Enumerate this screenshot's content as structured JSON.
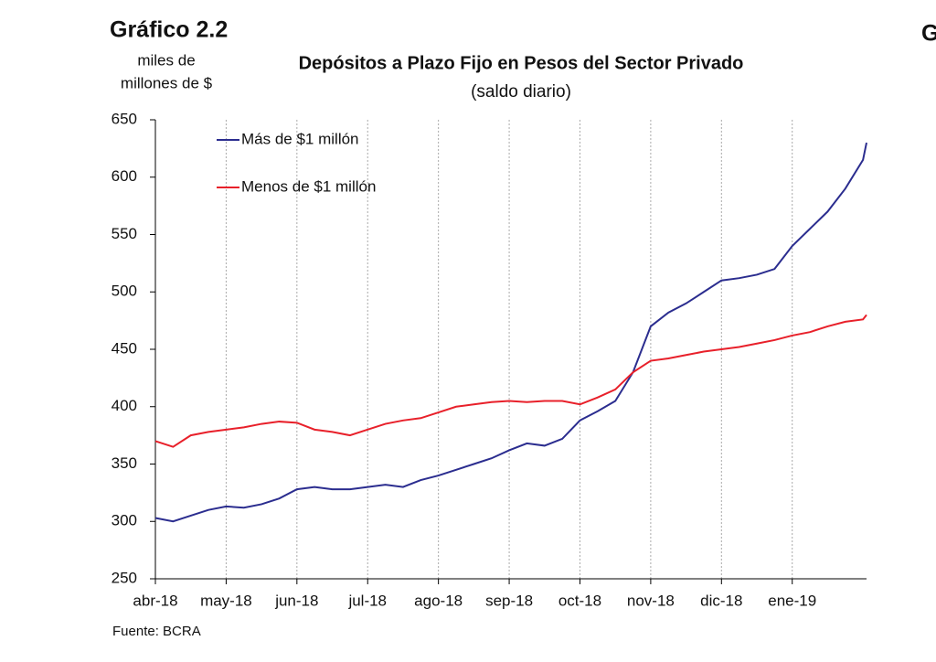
{
  "chart_data": {
    "type": "line",
    "figure_label": "Gráfico 2.2",
    "title": "Depósitos a Plazo Fijo en Pesos del Sector Privado",
    "subtitle": "(saldo diario)",
    "ylabel": [
      "miles de",
      "millones de $"
    ],
    "source": "Fuente: BCRA",
    "next_figure_label": "G",
    "x": [
      0,
      0.25,
      0.5,
      0.75,
      1,
      1.25,
      1.5,
      1.75,
      2,
      2.25,
      2.5,
      2.75,
      3,
      3.25,
      3.5,
      3.75,
      4,
      4.25,
      4.5,
      4.75,
      5,
      5.25,
      5.5,
      5.75,
      6,
      6.25,
      6.5,
      6.75,
      7,
      7.25,
      7.5,
      7.75,
      8,
      8.25,
      8.5,
      8.75,
      9,
      9.25,
      9.5,
      9.75,
      10,
      10.05
    ],
    "series": [
      {
        "name": "Más de $1 millón",
        "color": "#2b2d8f",
        "values": [
          303,
          300,
          305,
          310,
          313,
          312,
          315,
          320,
          328,
          330,
          328,
          328,
          330,
          332,
          330,
          336,
          340,
          345,
          350,
          355,
          362,
          368,
          366,
          372,
          388,
          396,
          405,
          430,
          470,
          482,
          490,
          500,
          510,
          512,
          515,
          520,
          540,
          555,
          570,
          590,
          615,
          630
        ]
      },
      {
        "name": "Menos de $1 millón",
        "color": "#e8202a",
        "values": [
          370,
          365,
          375,
          378,
          380,
          382,
          385,
          387,
          386,
          380,
          378,
          375,
          380,
          385,
          388,
          390,
          395,
          400,
          402,
          404,
          405,
          404,
          405,
          405,
          402,
          408,
          415,
          430,
          440,
          442,
          445,
          448,
          450,
          452,
          455,
          458,
          462,
          465,
          470,
          474,
          476,
          480
        ]
      }
    ],
    "xlim": [
      0,
      10.05
    ],
    "xticks": [
      {
        "value": 0,
        "label": "abr-18"
      },
      {
        "value": 1,
        "label": "may-18"
      },
      {
        "value": 2,
        "label": "jun-18"
      },
      {
        "value": 3,
        "label": "jul-18"
      },
      {
        "value": 4,
        "label": "ago-18"
      },
      {
        "value": 5,
        "label": "sep-18"
      },
      {
        "value": 6,
        "label": "oct-18"
      },
      {
        "value": 7,
        "label": "nov-18"
      },
      {
        "value": 8,
        "label": "dic-18"
      },
      {
        "value": 9,
        "label": "ene-19"
      }
    ],
    "ylim": [
      250,
      650
    ],
    "yticks": [
      250,
      300,
      350,
      400,
      450,
      500,
      550,
      600,
      650
    ],
    "grid": true
  }
}
